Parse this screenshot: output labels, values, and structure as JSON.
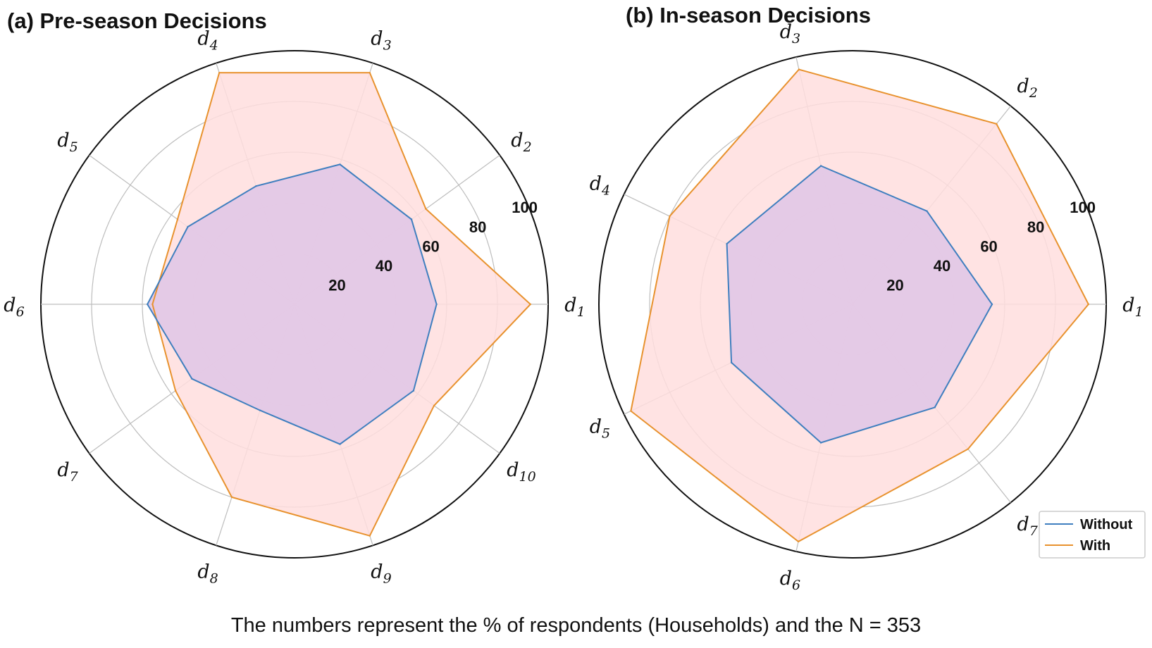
{
  "caption": "The numbers represent the % of respondents (Households) and the N = 353",
  "colors": {
    "without": "#3f7fbf",
    "with": "#e8922e",
    "with_fill": "#ffdede",
    "overlap_fill": "#e3c8e6",
    "grid": "#bdbdbd",
    "frame": "#111111"
  },
  "chart_data": [
    {
      "type": "radar",
      "title": "(a) Pre-season Decisions",
      "axes": [
        {
          "base": "d",
          "sub": "1"
        },
        {
          "base": "d",
          "sub": "2"
        },
        {
          "base": "d",
          "sub": "3"
        },
        {
          "base": "d",
          "sub": "4"
        },
        {
          "base": "d",
          "sub": "5"
        },
        {
          "base": "d",
          "sub": "6"
        },
        {
          "base": "d",
          "sub": "7"
        },
        {
          "base": "d",
          "sub": "8"
        },
        {
          "base": "d",
          "sub": "9"
        },
        {
          "base": "d",
          "sub": "10"
        }
      ],
      "rlim": [
        0,
        100
      ],
      "rticks": [
        "20",
        "40",
        "60",
        "80",
        "100"
      ],
      "series": [
        {
          "name": "Without",
          "values": [
            56,
            57,
            58,
            49,
            52,
            58,
            50,
            44,
            58,
            58
          ]
        },
        {
          "name": "With",
          "values": [
            93,
            64,
            96,
            96,
            57,
            56,
            58,
            80,
            96,
            68
          ]
        }
      ]
    },
    {
      "type": "radar",
      "title": "(b) In-season Decisions",
      "axes": [
        {
          "base": "d",
          "sub": "1"
        },
        {
          "base": "d",
          "sub": "2"
        },
        {
          "base": "d",
          "sub": "3"
        },
        {
          "base": "d",
          "sub": "4"
        },
        {
          "base": "d",
          "sub": "5"
        },
        {
          "base": "d",
          "sub": "6"
        },
        {
          "base": "d",
          "sub": "7"
        }
      ],
      "rlim": [
        0,
        100
      ],
      "rticks": [
        "20",
        "40",
        "60",
        "80",
        "100"
      ],
      "legend": {
        "position": "lower-right",
        "entries": [
          "Without",
          "With"
        ]
      },
      "series": [
        {
          "name": "Without",
          "values": [
            55,
            47,
            56,
            55,
            53,
            56,
            52
          ]
        },
        {
          "name": "With",
          "values": [
            93,
            91,
            95,
            80,
            97,
            96,
            73
          ]
        }
      ]
    }
  ]
}
